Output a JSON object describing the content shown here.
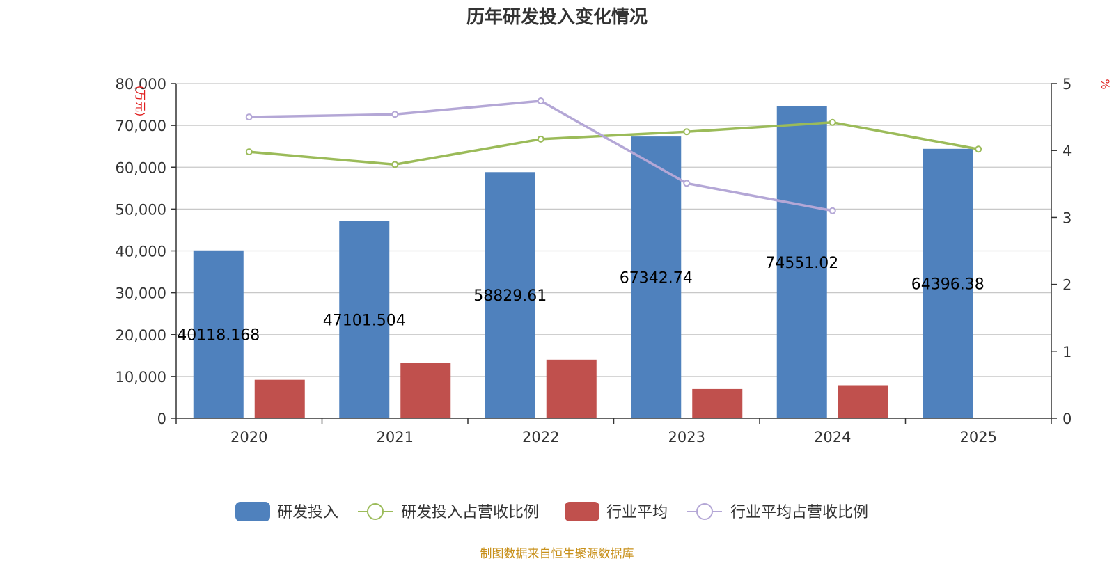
{
  "title": "历年研发投入变化情况",
  "footer": "制图数据来自恒生聚源数据库",
  "chart_data": {
    "type": "bar",
    "categories": [
      "2020",
      "2021",
      "2022",
      "2023",
      "2024",
      "2025"
    ],
    "y_left": {
      "unit": "万元",
      "ylim": [
        0,
        80000
      ],
      "ticks": [
        "0",
        "10,000",
        "20,000",
        "30,000",
        "40,000",
        "50,000",
        "60,000",
        "70,000",
        "80,000"
      ]
    },
    "y_right": {
      "unit": "%",
      "ylim": [
        0,
        5
      ],
      "ticks": [
        "0",
        "1",
        "2",
        "3",
        "4",
        "5"
      ]
    },
    "grid": true,
    "legend_position": "bottom",
    "series": [
      {
        "name": "研发投入",
        "type": "bar",
        "axis": "left",
        "color": "#4f81bd",
        "values": [
          40118.168,
          47101.504,
          58829.61,
          67342.74,
          74551.02,
          64396.38
        ],
        "labels": [
          "40118.168",
          "47101.504",
          "58829.61",
          "67342.74",
          "74551.02",
          "64396.38"
        ]
      },
      {
        "name": "研发投入占营收比例",
        "type": "line",
        "axis": "right",
        "color": "#9bbb59",
        "values": [
          3.98,
          3.79,
          4.17,
          4.28,
          4.42,
          4.02
        ]
      },
      {
        "name": "行业平均",
        "type": "bar",
        "axis": "left",
        "color": "#c0504d",
        "values": [
          9200,
          13200,
          14000,
          7000,
          7900,
          null
        ]
      },
      {
        "name": "行业平均占营收比例",
        "type": "line",
        "axis": "right",
        "color": "#b4a7d6",
        "values": [
          4.5,
          4.54,
          4.74,
          3.51,
          3.1,
          null
        ]
      }
    ]
  }
}
